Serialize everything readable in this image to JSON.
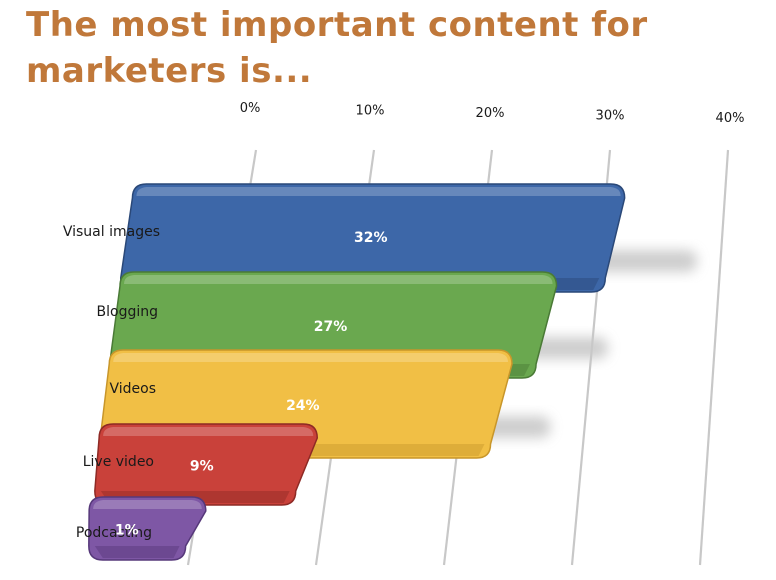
{
  "title": "The most important content for marketers is...",
  "chart_data": {
    "type": "bar",
    "orientation": "horizontal",
    "categories": [
      "Visual images",
      "Blogging",
      "Videos",
      "Live video",
      "Podcasting"
    ],
    "values": [
      32,
      27,
      24,
      9,
      1
    ],
    "data_labels": [
      "32%",
      "27%",
      "24%",
      "9%",
      "1%"
    ],
    "x_ticks": [
      "0%",
      "10%",
      "20%",
      "30%",
      "40%"
    ],
    "xlim": [
      0,
      40
    ],
    "colors": [
      "#3d67a8",
      "#6aa84f",
      "#f1bf45",
      "#c9413a",
      "#7e57a5"
    ],
    "dark_colors": [
      "#2a4878",
      "#4a7a36",
      "#c8962a",
      "#8e2a25",
      "#56387a"
    ],
    "grid": true,
    "title": "The most important content for marketers is..."
  }
}
